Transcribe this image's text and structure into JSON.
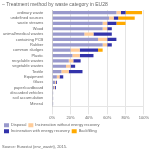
{
  "chart_data": {
    "type": "bar",
    "orientation": "horizontal",
    "stacked": true,
    "title": "– Treatment method by waste category in EU28",
    "annotations": [
      "Source: Eurostat (env_wastrt), 2015."
    ],
    "categories": [
      "Mineral",
      "soil accumulation",
      "discarded vehicles",
      "paper/cardboard",
      "Glass",
      "Equipment",
      "Textile",
      "vegetable wastes",
      "recyclable wastes",
      "Plastic",
      "common sludges",
      "Rubber",
      "containing PCB",
      "animal/medical wastes",
      "Wood",
      "waste streams",
      "undefined sources",
      "ordinary waste"
    ],
    "series": [
      {
        "name": "Disposal",
        "color": "#9999cc",
        "values": [
          1,
          1,
          1,
          2,
          3,
          5,
          10,
          15,
          18,
          22,
          20,
          55,
          50,
          35,
          55,
          55,
          62,
          70
        ]
      },
      {
        "name": "Incineration without energy recovery",
        "color": "#ffcc99",
        "values": [
          0,
          0,
          0,
          1,
          1,
          3,
          8,
          5,
          5,
          8,
          10,
          5,
          10,
          10,
          5,
          5,
          5,
          5
        ]
      },
      {
        "name": "Incineration with energy recovery",
        "color": "#3333aa",
        "values": [
          0,
          0,
          0,
          1,
          1,
          4,
          15,
          5,
          8,
          15,
          20,
          5,
          10,
          20,
          5,
          10,
          5,
          5
        ]
      },
      {
        "name": "Backfilling",
        "color": "#ffaa00",
        "values": [
          0,
          0,
          0,
          0,
          0,
          0,
          0,
          0,
          0,
          0,
          5,
          0,
          0,
          0,
          0,
          10,
          18,
          18
        ]
      }
    ],
    "xlim": [
      0,
      100
    ],
    "xticks": [
      {
        "value": 0,
        "label": "0%"
      },
      {
        "value": 20,
        "label": "20%"
      },
      {
        "value": 40,
        "label": "40%"
      },
      {
        "value": 60,
        "label": "60%"
      },
      {
        "value": 80,
        "label": "80%"
      },
      {
        "value": 100,
        "label": "100%"
      }
    ],
    "grid": true,
    "legend": "bottom"
  }
}
